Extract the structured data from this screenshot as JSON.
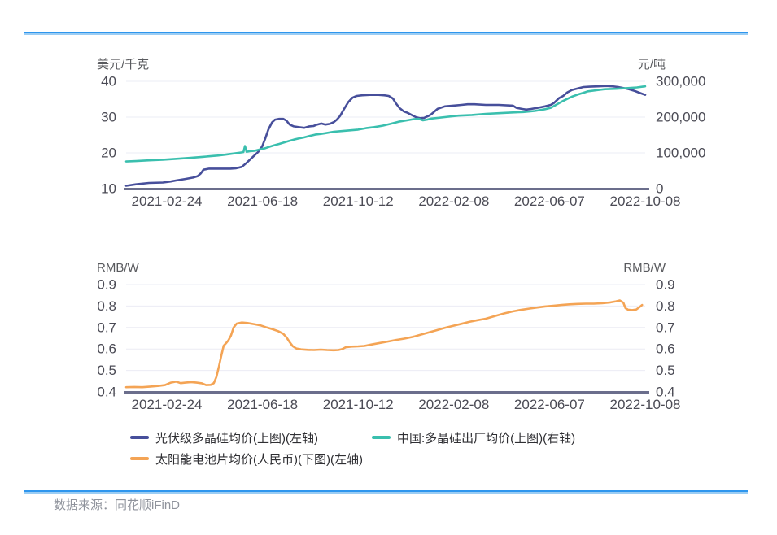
{
  "source_note": "数据来源：同花顺iFinD",
  "colors": {
    "divider": "#2E96EE",
    "divider_light": "#9BCDF4",
    "grid": "#EBECF4",
    "axis_line": "#6B6E8C",
    "tick_text": "#4B4B55",
    "unit_text": "#595A5E",
    "legend_text": "#2F2F33",
    "footer_text": "#8F939C",
    "series_blue": "#474F9B",
    "series_teal": "#3ABFAE",
    "series_orange": "#F4A455"
  },
  "chart_data": [
    {
      "type": "line",
      "position": "top",
      "grid": true,
      "x_ticks": [
        "2021-02-24",
        "2021-06-18",
        "2021-10-12",
        "2022-02-08",
        "2022-06-07",
        "2022-10-08"
      ],
      "y_left": {
        "unit": "美元/千克",
        "min": 10,
        "max": 40,
        "ticks": [
          "40",
          "30",
          "20",
          "10"
        ]
      },
      "y_right": {
        "unit": "元/吨",
        "min": 0,
        "max": 300000,
        "ticks": [
          "300,000",
          "200,000",
          "100,000",
          "0"
        ]
      },
      "series": [
        {
          "name": "光伏级多晶硅均价(上图)(左轴)",
          "axis": "left",
          "color": "#474F9B",
          "points": [
            [
              0,
              10.8
            ],
            [
              0.019,
              11.2
            ],
            [
              0.044,
              11.6
            ],
            [
              0.071,
              11.7
            ],
            [
              0.086,
              12
            ],
            [
              0.097,
              12.3
            ],
            [
              0.114,
              12.7
            ],
            [
              0.129,
              13.1
            ],
            [
              0.138,
              13.5
            ],
            [
              0.144,
              14.3
            ],
            [
              0.149,
              15.3
            ],
            [
              0.16,
              15.6
            ],
            [
              0.18,
              15.6
            ],
            [
              0.201,
              15.6
            ],
            [
              0.212,
              15.7
            ],
            [
              0.223,
              16.1
            ],
            [
              0.232,
              17.2
            ],
            [
              0.243,
              18.7
            ],
            [
              0.254,
              20.2
            ],
            [
              0.262,
              21.8
            ],
            [
              0.268,
              24
            ],
            [
              0.274,
              26.5
            ],
            [
              0.281,
              28.5
            ],
            [
              0.287,
              29.3
            ],
            [
              0.295,
              29.5
            ],
            [
              0.303,
              29.5
            ],
            [
              0.309,
              29
            ],
            [
              0.315,
              27.9
            ],
            [
              0.323,
              27.4
            ],
            [
              0.332,
              27.2
            ],
            [
              0.343,
              27
            ],
            [
              0.353,
              27.4
            ],
            [
              0.361,
              27.5
            ],
            [
              0.368,
              27.9
            ],
            [
              0.376,
              28.2
            ],
            [
              0.384,
              27.9
            ],
            [
              0.392,
              28.1
            ],
            [
              0.4,
              28.6
            ],
            [
              0.406,
              29.3
            ],
            [
              0.412,
              30.3
            ],
            [
              0.42,
              32.3
            ],
            [
              0.428,
              34.2
            ],
            [
              0.436,
              35.4
            ],
            [
              0.444,
              35.9
            ],
            [
              0.455,
              36.1
            ],
            [
              0.47,
              36.2
            ],
            [
              0.486,
              36.2
            ],
            [
              0.497,
              36.1
            ],
            [
              0.506,
              35.9
            ],
            [
              0.514,
              35.2
            ],
            [
              0.52,
              33.8
            ],
            [
              0.527,
              32.5
            ],
            [
              0.535,
              31.6
            ],
            [
              0.542,
              31.2
            ],
            [
              0.55,
              30.6
            ],
            [
              0.558,
              30
            ],
            [
              0.566,
              29.7
            ],
            [
              0.574,
              29.8
            ],
            [
              0.582,
              30.3
            ],
            [
              0.588,
              30.8
            ],
            [
              0.6,
              32.3
            ],
            [
              0.614,
              33
            ],
            [
              0.63,
              33.2
            ],
            [
              0.646,
              33.4
            ],
            [
              0.658,
              33.6
            ],
            [
              0.671,
              33.6
            ],
            [
              0.693,
              33.4
            ],
            [
              0.718,
              33.4
            ],
            [
              0.745,
              33.2
            ],
            [
              0.752,
              32.6
            ],
            [
              0.762,
              32.3
            ],
            [
              0.771,
              32.1
            ],
            [
              0.781,
              32.3
            ],
            [
              0.793,
              32.6
            ],
            [
              0.807,
              33
            ],
            [
              0.818,
              33.4
            ],
            [
              0.824,
              33.9
            ],
            [
              0.834,
              35.3
            ],
            [
              0.842,
              35.9
            ],
            [
              0.85,
              36.9
            ],
            [
              0.859,
              37.6
            ],
            [
              0.87,
              38
            ],
            [
              0.881,
              38.4
            ],
            [
              0.893,
              38.5
            ],
            [
              0.909,
              38.6
            ],
            [
              0.925,
              38.7
            ],
            [
              0.937,
              38.6
            ],
            [
              0.948,
              38.4
            ],
            [
              0.959,
              38.1
            ],
            [
              0.969,
              37.8
            ],
            [
              0.98,
              37.3
            ],
            [
              0.989,
              36.8
            ],
            [
              1,
              36.2
            ]
          ]
        },
        {
          "name": "中国:多晶硅出厂均价(上图)(右轴)",
          "axis": "right",
          "color": "#3ABFAE",
          "points": [
            [
              0,
              76000
            ],
            [
              0.019,
              77000
            ],
            [
              0.044,
              79000
            ],
            [
              0.071,
              81000
            ],
            [
              0.097,
              83500
            ],
            [
              0.122,
              86000
            ],
            [
              0.149,
              89000
            ],
            [
              0.176,
              92500
            ],
            [
              0.191,
              95000
            ],
            [
              0.201,
              97000
            ],
            [
              0.216,
              100000
            ],
            [
              0.226,
              102000
            ],
            [
              0.229,
              119000
            ],
            [
              0.232,
              103000
            ],
            [
              0.238,
              104500
            ],
            [
              0.248,
              106000
            ],
            [
              0.259,
              110000
            ],
            [
              0.268,
              113000
            ],
            [
              0.276,
              117000
            ],
            [
              0.285,
              121000
            ],
            [
              0.295,
              125000
            ],
            [
              0.304,
              129000
            ],
            [
              0.313,
              133000
            ],
            [
              0.323,
              137000
            ],
            [
              0.332,
              140000
            ],
            [
              0.342,
              143000
            ],
            [
              0.353,
              147000
            ],
            [
              0.364,
              151000
            ],
            [
              0.375,
              153000
            ],
            [
              0.384,
              155000
            ],
            [
              0.4,
              159000
            ],
            [
              0.415,
              161000
            ],
            [
              0.431,
              163000
            ],
            [
              0.447,
              165000
            ],
            [
              0.462,
              169000
            ],
            [
              0.478,
              172000
            ],
            [
              0.494,
              176000
            ],
            [
              0.509,
              181000
            ],
            [
              0.525,
              187000
            ],
            [
              0.541,
              191000
            ],
            [
              0.553,
              194000
            ],
            [
              0.564,
              195000
            ],
            [
              0.572,
              191000
            ],
            [
              0.58,
              193000
            ],
            [
              0.588,
              196000
            ],
            [
              0.614,
              200000
            ],
            [
              0.64,
              204000
            ],
            [
              0.666,
              206000
            ],
            [
              0.693,
              209000
            ],
            [
              0.718,
              211000
            ],
            [
              0.745,
              213000
            ],
            [
              0.765,
              214000
            ],
            [
              0.787,
              217000
            ],
            [
              0.807,
              222000
            ],
            [
              0.818,
              226000
            ],
            [
              0.828,
              234000
            ],
            [
              0.839,
              243000
            ],
            [
              0.85,
              251000
            ],
            [
              0.859,
              257000
            ],
            [
              0.87,
              263000
            ],
            [
              0.881,
              268000
            ],
            [
              0.89,
              272000
            ],
            [
              0.906,
              275000
            ],
            [
              0.922,
              278000
            ],
            [
              0.944,
              279000
            ],
            [
              0.964,
              281000
            ],
            [
              0.984,
              283000
            ],
            [
              0.995,
              285000
            ],
            [
              1,
              286000
            ]
          ]
        }
      ]
    },
    {
      "type": "line",
      "position": "bottom",
      "grid": true,
      "x_ticks": [
        "2021-02-24",
        "2021-06-18",
        "2021-10-12",
        "2022-02-08",
        "2022-06-07",
        "2022-10-08"
      ],
      "y_left": {
        "unit": "RMB/W",
        "min": 0.4,
        "max": 0.9,
        "ticks": [
          "0.9",
          "0.8",
          "0.7",
          "0.6",
          "0.5",
          "0.4"
        ]
      },
      "y_right": {
        "unit": "RMB/W",
        "min": 0.4,
        "max": 0.9,
        "ticks": [
          "0.9",
          "0.8",
          "0.7",
          "0.6",
          "0.5",
          "0.4"
        ]
      },
      "series": [
        {
          "name": "太阳能电池片均价(人民币)(下图)(左轴)",
          "axis": "left",
          "color": "#F4A455",
          "points": [
            [
              0,
              0.422
            ],
            [
              0.016,
              0.423
            ],
            [
              0.031,
              0.422
            ],
            [
              0.047,
              0.425
            ],
            [
              0.063,
              0.428
            ],
            [
              0.075,
              0.432
            ],
            [
              0.086,
              0.443
            ],
            [
              0.096,
              0.448
            ],
            [
              0.105,
              0.441
            ],
            [
              0.114,
              0.443
            ],
            [
              0.125,
              0.446
            ],
            [
              0.136,
              0.443
            ],
            [
              0.146,
              0.44
            ],
            [
              0.154,
              0.432
            ],
            [
              0.163,
              0.433
            ],
            [
              0.169,
              0.441
            ],
            [
              0.174,
              0.47
            ],
            [
              0.179,
              0.52
            ],
            [
              0.183,
              0.565
            ],
            [
              0.188,
              0.615
            ],
            [
              0.193,
              0.628
            ],
            [
              0.197,
              0.64
            ],
            [
              0.202,
              0.663
            ],
            [
              0.207,
              0.7
            ],
            [
              0.213,
              0.718
            ],
            [
              0.223,
              0.723
            ],
            [
              0.234,
              0.721
            ],
            [
              0.246,
              0.716
            ],
            [
              0.259,
              0.71
            ],
            [
              0.271,
              0.7
            ],
            [
              0.282,
              0.692
            ],
            [
              0.293,
              0.683
            ],
            [
              0.303,
              0.67
            ],
            [
              0.309,
              0.654
            ],
            [
              0.315,
              0.632
            ],
            [
              0.321,
              0.613
            ],
            [
              0.328,
              0.602
            ],
            [
              0.337,
              0.598
            ],
            [
              0.35,
              0.596
            ],
            [
              0.362,
              0.595
            ],
            [
              0.375,
              0.597
            ],
            [
              0.387,
              0.595
            ],
            [
              0.4,
              0.594
            ],
            [
              0.409,
              0.595
            ],
            [
              0.417,
              0.6
            ],
            [
              0.423,
              0.608
            ],
            [
              0.434,
              0.611
            ],
            [
              0.447,
              0.612
            ],
            [
              0.459,
              0.614
            ],
            [
              0.473,
              0.621
            ],
            [
              0.489,
              0.628
            ],
            [
              0.505,
              0.635
            ],
            [
              0.52,
              0.642
            ],
            [
              0.536,
              0.648
            ],
            [
              0.552,
              0.656
            ],
            [
              0.567,
              0.666
            ],
            [
              0.583,
              0.677
            ],
            [
              0.599,
              0.688
            ],
            [
              0.614,
              0.698
            ],
            [
              0.63,
              0.708
            ],
            [
              0.646,
              0.717
            ],
            [
              0.661,
              0.726
            ],
            [
              0.677,
              0.734
            ],
            [
              0.693,
              0.741
            ],
            [
              0.713,
              0.755
            ],
            [
              0.729,
              0.766
            ],
            [
              0.745,
              0.775
            ],
            [
              0.76,
              0.782
            ],
            [
              0.776,
              0.788
            ],
            [
              0.792,
              0.793
            ],
            [
              0.807,
              0.798
            ],
            [
              0.823,
              0.801
            ],
            [
              0.839,
              0.805
            ],
            [
              0.854,
              0.808
            ],
            [
              0.87,
              0.81
            ],
            [
              0.886,
              0.811
            ],
            [
              0.901,
              0.811
            ],
            [
              0.917,
              0.813
            ],
            [
              0.933,
              0.817
            ],
            [
              0.944,
              0.822
            ],
            [
              0.951,
              0.826
            ],
            [
              0.958,
              0.815
            ],
            [
              0.962,
              0.79
            ],
            [
              0.967,
              0.783
            ],
            [
              0.975,
              0.781
            ],
            [
              0.983,
              0.784
            ],
            [
              0.989,
              0.795
            ],
            [
              0.994,
              0.805
            ]
          ]
        }
      ]
    }
  ],
  "legend_note": "legend swatches take colors from chart_data series"
}
